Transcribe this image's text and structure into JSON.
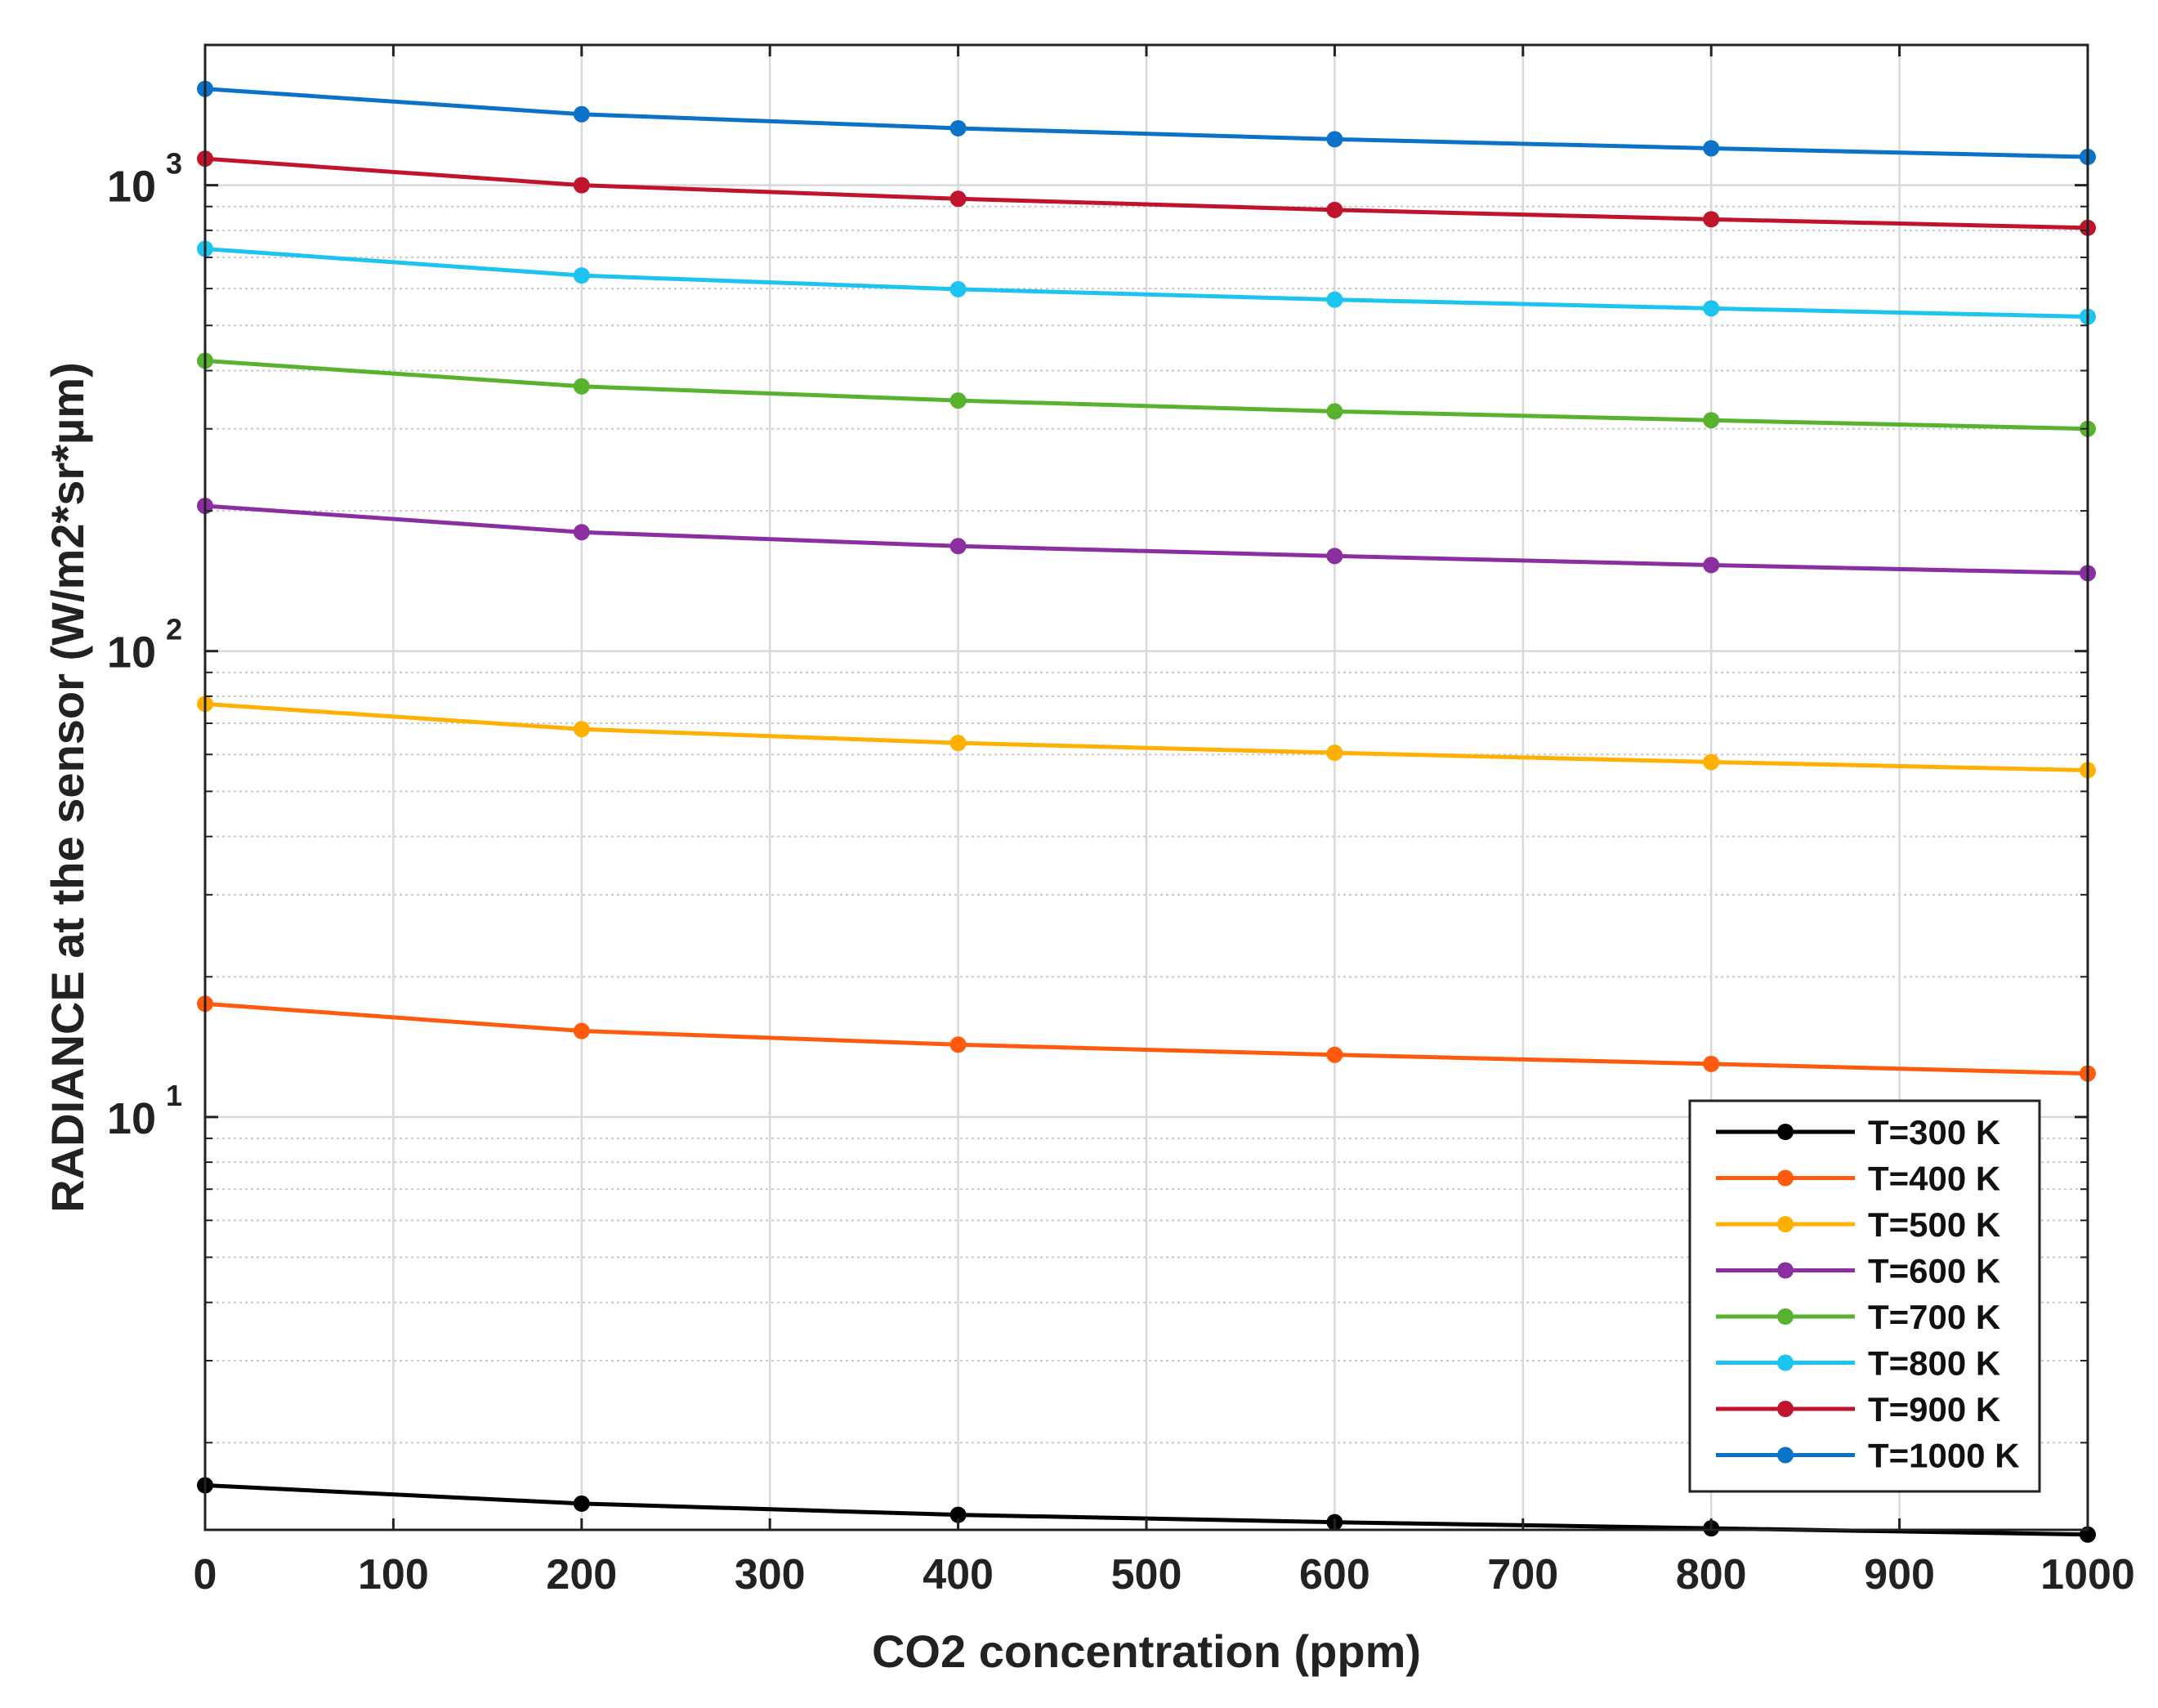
{
  "chart_data": {
    "type": "line",
    "title": "",
    "xlabel": "CO2 concentration (ppm)",
    "ylabel": "RADIANCE at the sensor (W/m2*sr*µm)",
    "yscale": "log",
    "xlim": [
      0,
      1000
    ],
    "ylim": [
      1.3,
      2000
    ],
    "xticks": [
      0,
      100,
      200,
      300,
      400,
      500,
      600,
      700,
      800,
      900,
      1000
    ],
    "xtick_labels": [
      "0",
      "100",
      "200",
      "300",
      "400",
      "500",
      "600",
      "700",
      "800",
      "900",
      "1000"
    ],
    "yticks": [
      {
        "value": 10,
        "base": "10",
        "exp": "1"
      },
      {
        "value": 100,
        "base": "10",
        "exp": "2"
      },
      {
        "value": 1000,
        "base": "10",
        "exp": "3"
      }
    ],
    "grid": true,
    "legend_position": "bottom-right",
    "x": [
      0,
      200,
      400,
      600,
      800,
      1000
    ],
    "series": [
      {
        "name": "T=300 K",
        "color": "#000000",
        "values": [
          1.62,
          1.48,
          1.4,
          1.35,
          1.31,
          1.27
        ]
      },
      {
        "name": "T=400 K",
        "color": "#ff5a0e",
        "values": [
          17.5,
          15.3,
          14.3,
          13.6,
          13.0,
          12.4
        ]
      },
      {
        "name": "T=500 K",
        "color": "#ffb000",
        "values": [
          77,
          68,
          63.5,
          60.5,
          57.8,
          55.5
        ]
      },
      {
        "name": "T=600 K",
        "color": "#8b2fa0",
        "values": [
          205,
          180,
          168,
          160,
          153,
          147
        ]
      },
      {
        "name": "T=700 K",
        "color": "#58b22e",
        "values": [
          420,
          370,
          345,
          327,
          313,
          300
        ]
      },
      {
        "name": "T=800 K",
        "color": "#1ec4f0",
        "values": [
          730,
          640,
          598,
          568,
          544,
          522
        ]
      },
      {
        "name": "T=900 K",
        "color": "#c0142c",
        "values": [
          1140,
          1000,
          935,
          885,
          845,
          810
        ]
      },
      {
        "name": "T=1000 K",
        "color": "#0a72c8",
        "values": [
          1610,
          1420,
          1325,
          1255,
          1200,
          1150
        ]
      }
    ]
  }
}
